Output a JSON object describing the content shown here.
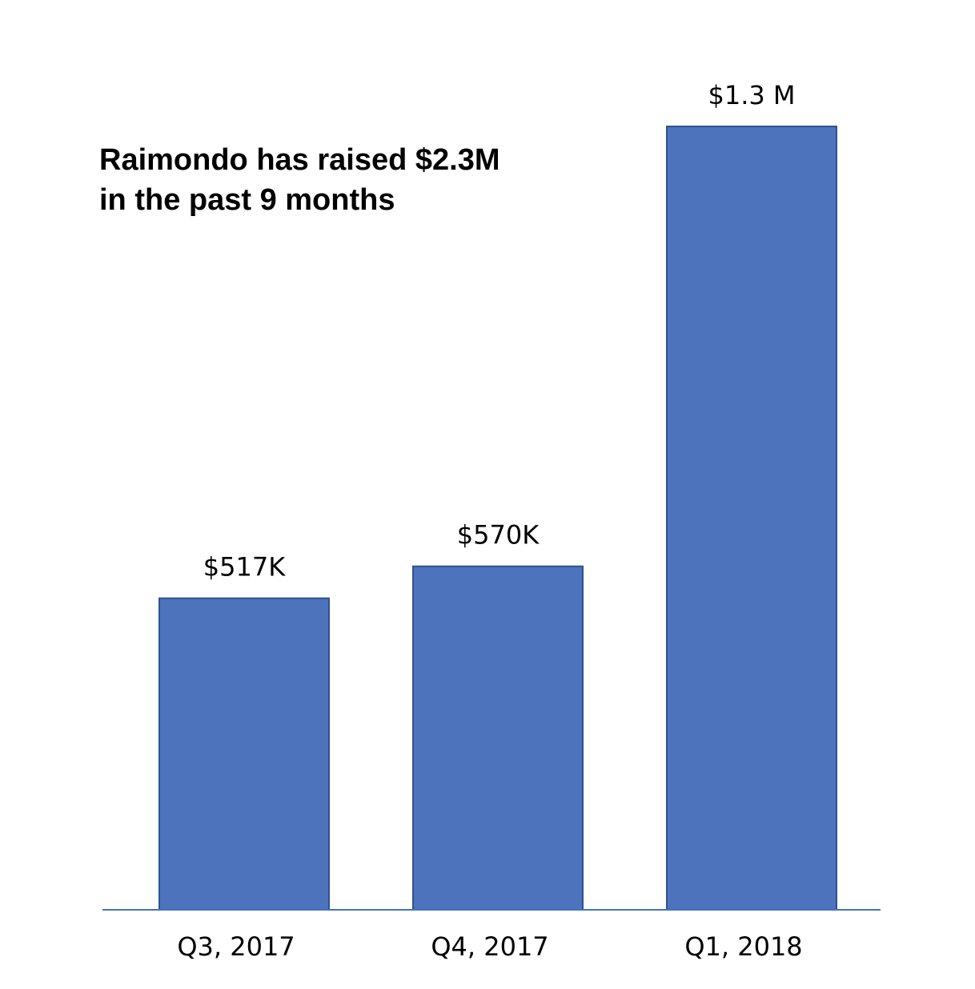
{
  "chart_data": {
    "type": "bar",
    "title_lines": [
      "Raimondo has raised $2.3M",
      "in the past 9 months"
    ],
    "categories": [
      "Q3, 2017",
      "Q4, 2017",
      "Q1, 2018"
    ],
    "values": [
      517000,
      570000,
      1300000
    ],
    "data_labels": [
      "$517K",
      "$570K",
      "$1.3 M"
    ],
    "ylim": [
      0,
      1300000
    ],
    "grid": false,
    "bar_color": "#4e73bd",
    "bar_edge_color": "#2f528f",
    "axis_color": "#4472c4"
  }
}
